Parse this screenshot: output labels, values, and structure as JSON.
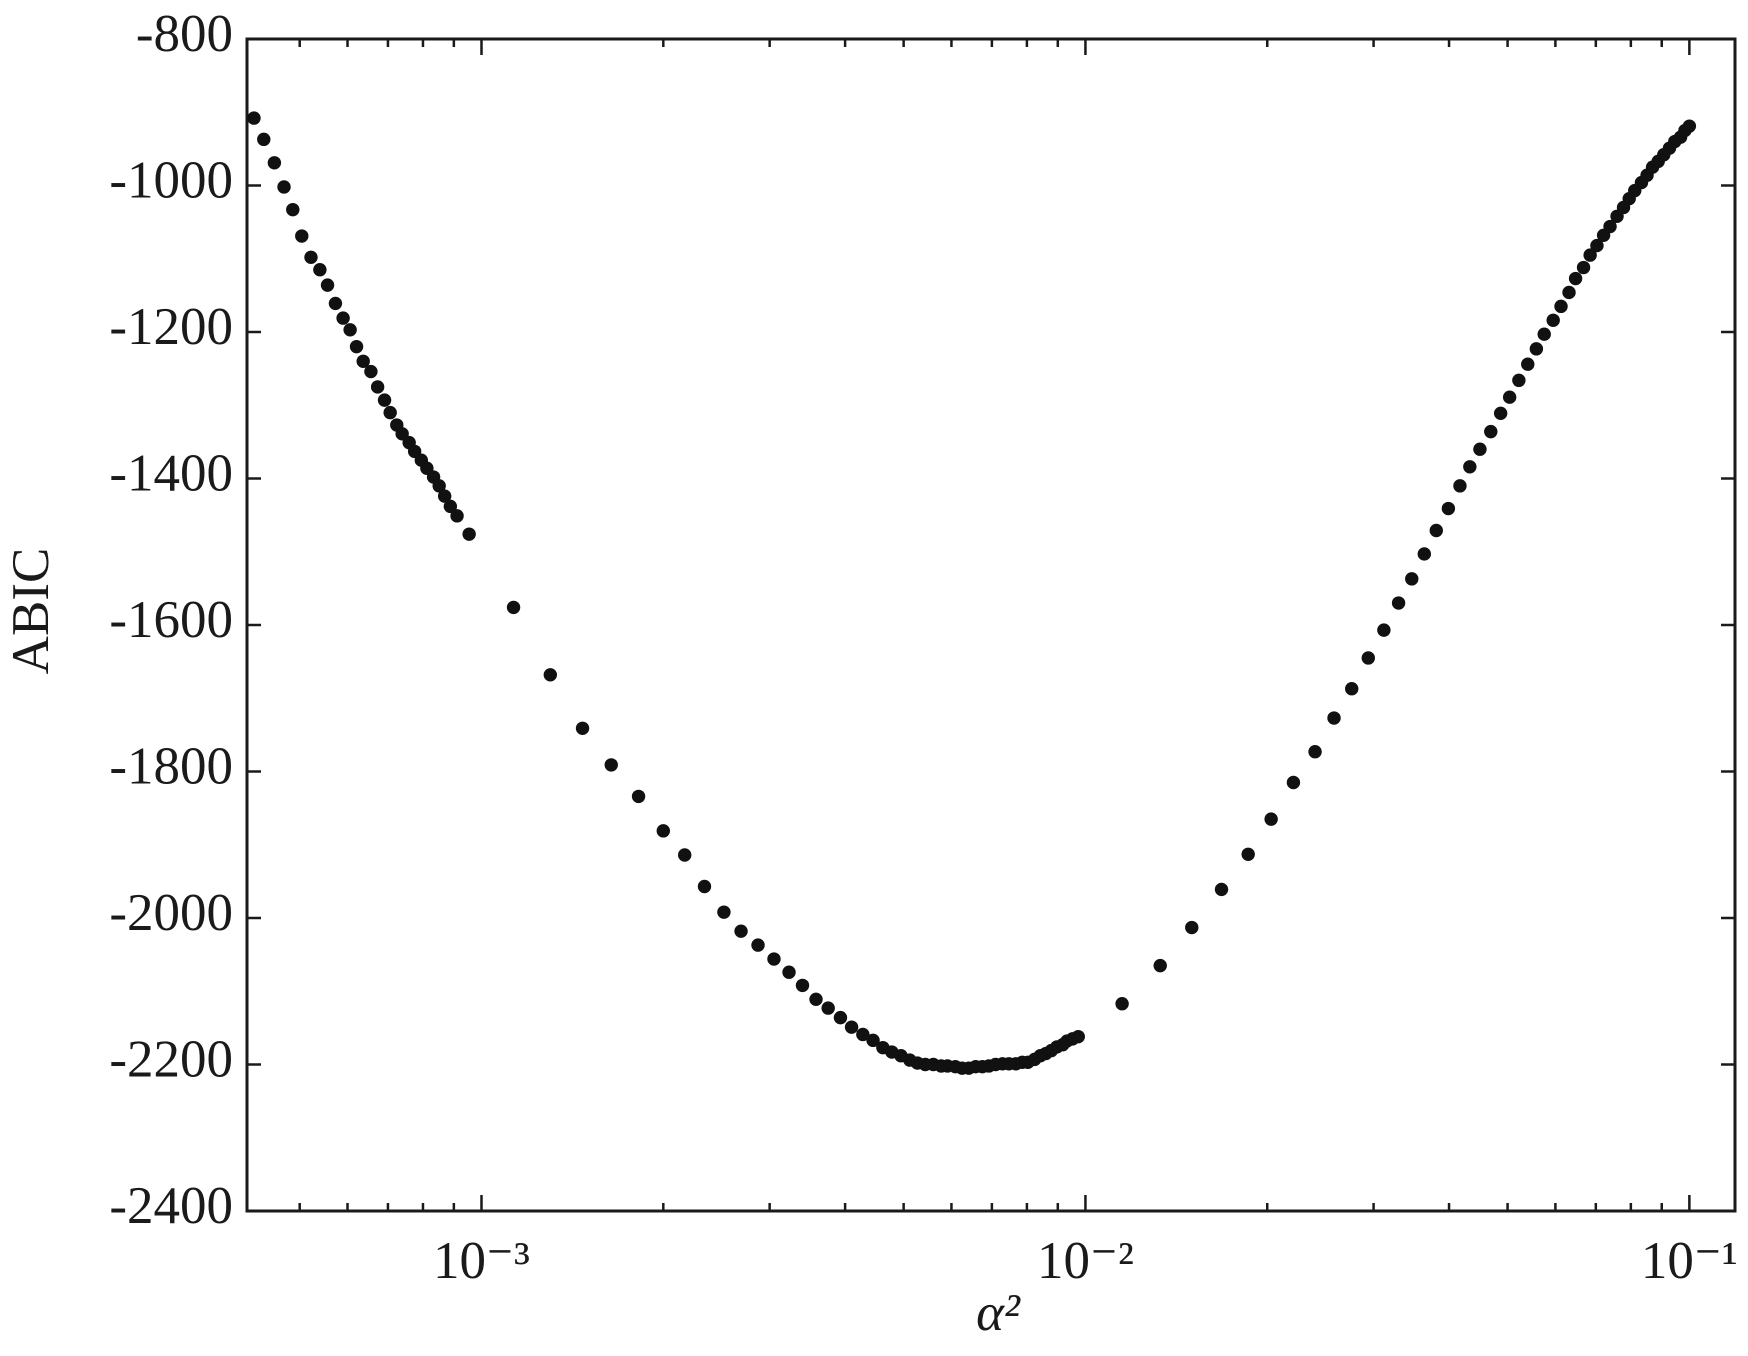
{
  "chart_data": {
    "type": "scatter",
    "xlabel": "α²",
    "ylabel": "ABIC",
    "xscale": "log",
    "color": "#111111",
    "xlim": [
      0.000409,
      0.119
    ],
    "ylim": [
      -2400,
      -800
    ],
    "xticks": [
      {
        "value": 0.001,
        "label": "10⁻³"
      },
      {
        "value": 0.01,
        "label": "10⁻²"
      },
      {
        "value": 0.1,
        "label": "10⁻¹"
      }
    ],
    "xminorticks": [
      0.0005,
      0.0006,
      0.0007,
      0.0008,
      0.0009,
      0.002,
      0.003,
      0.004,
      0.005,
      0.006,
      0.007,
      0.008,
      0.009,
      0.02,
      0.03,
      0.04,
      0.05,
      0.06,
      0.07,
      0.08,
      0.09
    ],
    "yticks": [
      -800,
      -1000,
      -1200,
      -1400,
      -1600,
      -1800,
      -2000,
      -2200,
      -2400
    ],
    "x": [
      0.00042,
      0.000436,
      0.000454,
      0.000471,
      0.000487,
      0.000504,
      0.000522,
      0.00054,
      0.000556,
      0.000573,
      0.00059,
      0.000606,
      0.000621,
      0.000637,
      0.000656,
      0.000673,
      0.000691,
      0.000706,
      0.000724,
      0.000739,
      0.000759,
      0.000775,
      0.000795,
      0.000812,
      0.000833,
      0.000851,
      0.000869,
      0.000888,
      0.000911,
      0.000954,
      0.00113,
      0.0013,
      0.00147,
      0.00164,
      0.00182,
      0.002,
      0.00217,
      0.00234,
      0.00252,
      0.00269,
      0.00287,
      0.00305,
      0.00323,
      0.0034,
      0.00358,
      0.00375,
      0.00393,
      0.0041,
      0.00428,
      0.00445,
      0.00462,
      0.00478,
      0.00495,
      0.00512,
      0.00527,
      0.00543,
      0.0056,
      0.00577,
      0.00591,
      0.00609,
      0.00625,
      0.00641,
      0.00658,
      0.00675,
      0.00692,
      0.0071,
      0.00729,
      0.00747,
      0.00767,
      0.00786,
      0.00803,
      0.00824,
      0.00842,
      0.0086,
      0.00878,
      0.00897,
      0.00917,
      0.00932,
      0.00952,
      0.00973,
      0.0115,
      0.0133,
      0.015,
      0.0168,
      0.0186,
      0.0203,
      0.0221,
      0.024,
      0.0258,
      0.0276,
      0.0294,
      0.0312,
      0.033,
      0.0347,
      0.0364,
      0.0381,
      0.0399,
      0.0417,
      0.0433,
      0.045,
      0.0469,
      0.0487,
      0.0504,
      0.0522,
      0.054,
      0.0558,
      0.0575,
      0.0595,
      0.0613,
      0.0632,
      0.0648,
      0.0668,
      0.0685,
      0.0703,
      0.0721,
      0.0739,
      0.0759,
      0.0778,
      0.0795,
      0.0812,
      0.0833,
      0.0851,
      0.0869,
      0.0888,
      0.0907,
      0.0927,
      0.0946,
      0.0967,
      0.0983,
      0.1
    ],
    "values": [
      -908,
      -937,
      -969,
      -1002,
      -1033,
      -1069,
      -1098,
      -1115,
      -1136,
      -1161,
      -1181,
      -1197,
      -1220,
      -1240,
      -1254,
      -1275,
      -1293,
      -1310,
      -1327,
      -1339,
      -1351,
      -1363,
      -1375,
      -1386,
      -1398,
      -1410,
      -1424,
      -1438,
      -1451,
      -1476,
      -1576,
      -1668,
      -1741,
      -1791,
      -1834,
      -1881,
      -1914,
      -1957,
      -1992,
      -2018,
      -2037,
      -2056,
      -2074,
      -2092,
      -2111,
      -2123,
      -2136,
      -2149,
      -2159,
      -2167,
      -2177,
      -2183,
      -2188,
      -2194,
      -2198,
      -2200,
      -2200,
      -2202,
      -2202,
      -2203,
      -2205,
      -2205,
      -2203,
      -2203,
      -2202,
      -2200,
      -2199,
      -2199,
      -2199,
      -2197,
      -2197,
      -2193,
      -2188,
      -2185,
      -2181,
      -2176,
      -2173,
      -2168,
      -2165,
      -2162,
      -2117,
      -2065,
      -2013,
      -1961,
      -1913,
      -1865,
      -1815,
      -1773,
      -1727,
      -1687,
      -1645,
      -1607,
      -1570,
      -1537,
      -1503,
      -1471,
      -1441,
      -1410,
      -1384,
      -1360,
      -1336,
      -1311,
      -1289,
      -1266,
      -1244,
      -1223,
      -1203,
      -1184,
      -1165,
      -1146,
      -1127,
      -1112,
      -1095,
      -1082,
      -1068,
      -1056,
      -1042,
      -1030,
      -1018,
      -1007,
      -996,
      -986,
      -975,
      -967,
      -958,
      -949,
      -940,
      -934,
      -925,
      -919
    ]
  }
}
